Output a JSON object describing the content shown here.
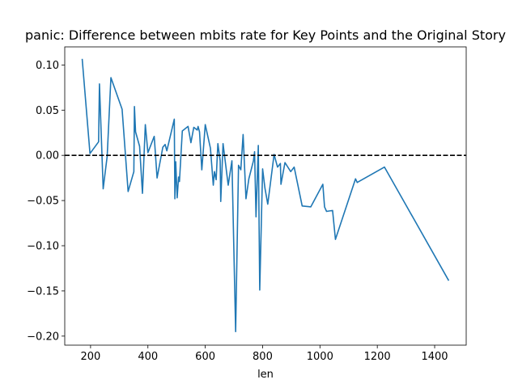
{
  "chart_data": {
    "type": "line",
    "title": "panic: Difference between mbits rate for Key Points and the Original Story",
    "xlabel": "len",
    "ylabel": "",
    "xlim": [
      110,
      1510
    ],
    "ylim": [
      -0.21,
      0.12
    ],
    "xticks": [
      200,
      400,
      600,
      800,
      1000,
      1200,
      1400
    ],
    "yticks": [
      0.1,
      0.05,
      0.0,
      -0.05,
      -0.1,
      -0.15,
      -0.2
    ],
    "ytick_labels": [
      "0.10",
      "0.05",
      "0.00",
      "−0.05",
      "−0.10",
      "−0.15",
      "−0.20"
    ],
    "grid": false,
    "reference_line": {
      "y": 0.0,
      "style": "dashed",
      "color": "#000000"
    },
    "series": [
      {
        "color": "#1f77b4",
        "x": [
          171,
          198,
          228,
          231,
          244,
          258,
          271,
          310,
          331,
          351,
          353,
          357,
          371,
          381,
          391,
          400,
          422,
          432,
          452,
          460,
          466,
          492,
          494,
          497,
          502,
          507,
          510,
          520,
          540,
          550,
          560,
          572,
          575,
          580,
          588,
          600,
          618,
          628,
          632,
          638,
          644,
          652,
          654,
          662,
          680,
          693,
          706,
          716,
          724,
          732,
          742,
          752,
          768,
          772,
          777,
          785,
          790,
          800,
          808,
          818,
          840,
          852,
          862,
          864,
          878,
          898,
          910,
          938,
          968,
          1010,
          1016,
          1023,
          1044,
          1054,
          1124,
          1130,
          1225,
          1448
        ],
        "y": [
          0.106,
          0.002,
          0.015,
          0.079,
          -0.037,
          -0.001,
          0.086,
          0.051,
          -0.04,
          -0.018,
          0.054,
          0.026,
          0.01,
          -0.042,
          0.034,
          0.003,
          0.021,
          -0.025,
          0.009,
          0.012,
          0.005,
          0.04,
          -0.048,
          -0.007,
          -0.047,
          -0.024,
          -0.029,
          0.027,
          0.032,
          0.014,
          0.031,
          0.028,
          0.032,
          0.026,
          -0.016,
          0.034,
          0.008,
          -0.033,
          -0.018,
          -0.027,
          0.013,
          -0.006,
          -0.051,
          0.013,
          -0.033,
          -0.006,
          -0.195,
          -0.011,
          -0.016,
          0.023,
          -0.048,
          -0.026,
          -0.006,
          0.004,
          -0.068,
          0.011,
          -0.149,
          -0.015,
          -0.036,
          -0.054,
          0.001,
          -0.013,
          -0.009,
          -0.032,
          -0.008,
          -0.018,
          -0.013,
          -0.056,
          -0.057,
          -0.032,
          -0.057,
          -0.062,
          -0.061,
          -0.093,
          -0.026,
          -0.03,
          -0.013,
          -0.138
        ]
      }
    ]
  }
}
